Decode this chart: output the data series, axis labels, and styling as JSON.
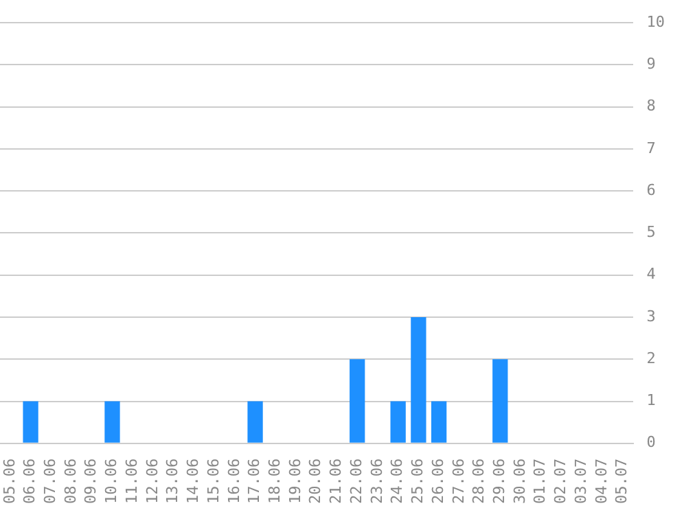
{
  "chart_data": {
    "type": "bar",
    "categories": [
      "05.06",
      "06.06",
      "07.06",
      "08.06",
      "09.06",
      "10.06",
      "11.06",
      "12.06",
      "13.06",
      "14.06",
      "15.06",
      "16.06",
      "17.06",
      "18.06",
      "19.06",
      "20.06",
      "21.06",
      "22.06",
      "23.06",
      "24.06",
      "25.06",
      "26.06",
      "27.06",
      "28.06",
      "29.06",
      "30.06",
      "01.07",
      "02.07",
      "03.07",
      "04.07",
      "05.07"
    ],
    "values": [
      0,
      1,
      0,
      0,
      0,
      1,
      0,
      0,
      0,
      0,
      0,
      0,
      1,
      0,
      0,
      0,
      0,
      2,
      0,
      1,
      3,
      1,
      0,
      0,
      2,
      0,
      0,
      0,
      0,
      0,
      0
    ],
    "color": "#1e90ff",
    "ylim": [
      0,
      10
    ],
    "yticks": [
      0,
      1,
      2,
      3,
      4,
      5,
      6,
      7,
      8,
      9,
      10
    ],
    "grid": "y",
    "legend": false
  }
}
